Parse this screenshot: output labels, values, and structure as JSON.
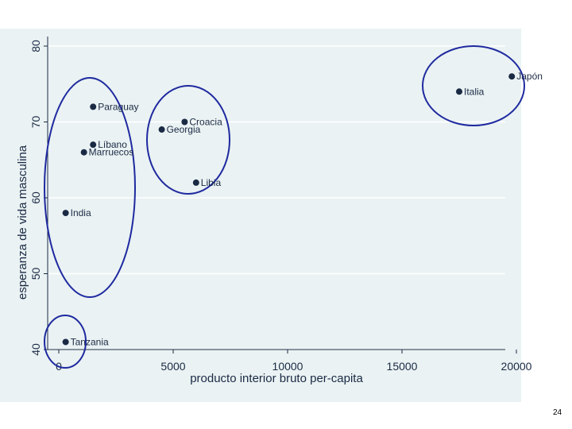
{
  "chart_data": {
    "type": "scatter",
    "title": "",
    "xlabel": "producto interior bruto per-capita",
    "ylabel": "esperanza de vida masculina",
    "xlim": [
      0,
      20000
    ],
    "ylim": [
      40,
      80
    ],
    "xticks": [
      0,
      5000,
      10000,
      15000,
      20000
    ],
    "yticks": [
      40,
      50,
      60,
      70,
      80
    ],
    "grid": "horizontal",
    "points": [
      {
        "label": "Japón",
        "x": 19800,
        "y": 76
      },
      {
        "label": "Italia",
        "x": 17500,
        "y": 74
      },
      {
        "label": "Paraguay",
        "x": 1500,
        "y": 72
      },
      {
        "label": "Croacia",
        "x": 5500,
        "y": 70
      },
      {
        "label": "Georgia",
        "x": 4500,
        "y": 69
      },
      {
        "label": "Líbano",
        "x": 1500,
        "y": 67
      },
      {
        "label": "Marruecos",
        "x": 1100,
        "y": 66
      },
      {
        "label": "Libia",
        "x": 6000,
        "y": 62
      },
      {
        "label": "India",
        "x": 300,
        "y": 58
      },
      {
        "label": "Tanzania",
        "x": 300,
        "y": 41
      }
    ],
    "annotations": "blue ellipses circling four groups of countries",
    "point_color": "#1a2a44",
    "ellipse_color": "#1f2aa0",
    "grid_color": "#ffffff"
  },
  "page": {
    "slide_number": "24"
  }
}
